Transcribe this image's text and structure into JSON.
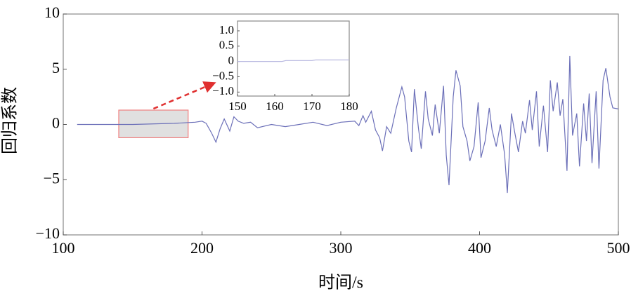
{
  "chart_data": {
    "type": "line",
    "xlabel": "时间/s",
    "ylabel": "回归系数",
    "xlim": [
      100,
      500
    ],
    "ylim": [
      -10,
      10
    ],
    "xticks": [
      100,
      200,
      300,
      400,
      500
    ],
    "yticks": [
      {
        "value": -10,
        "label": "−10"
      },
      {
        "value": -5,
        "label": "−5"
      },
      0,
      5,
      10
    ],
    "series": [
      {
        "color": "#6b6fb8",
        "x": [
          110,
          150,
          180,
          195,
          200,
          203,
          207,
          210,
          213,
          216,
          220,
          223,
          226,
          230,
          235,
          240,
          250,
          260,
          270,
          280,
          290,
          300,
          310,
          313,
          316,
          318,
          322,
          325,
          328,
          330,
          333,
          336,
          340,
          344,
          346,
          349,
          351,
          353,
          356,
          358,
          361,
          363,
          366,
          368,
          371,
          374,
          376,
          378,
          381,
          383,
          386,
          388,
          391,
          393,
          396,
          399,
          401,
          404,
          407,
          409,
          412,
          415,
          418,
          420,
          423,
          425,
          428,
          431,
          433,
          436,
          438,
          441,
          443,
          446,
          449,
          451,
          453,
          456,
          458,
          460,
          463,
          465,
          467,
          470,
          472,
          475,
          477,
          479,
          481,
          484,
          486,
          489,
          491,
          494,
          496,
          500
        ],
        "values": [
          0,
          0,
          0.1,
          0.2,
          0.3,
          0.1,
          -0.8,
          -1.6,
          -0.4,
          0.5,
          -0.6,
          0.7,
          0.3,
          0.1,
          0.2,
          -0.3,
          0,
          -0.2,
          0,
          0.2,
          -0.1,
          0.2,
          0.3,
          -0.1,
          0.8,
          0.2,
          1.2,
          -0.5,
          -1.2,
          -2.4,
          -0.2,
          -0.8,
          1.5,
          3.4,
          2.5,
          -1.5,
          -2.5,
          3.2,
          -0.4,
          -2.2,
          3.0,
          0.5,
          -1.0,
          1.8,
          -0.8,
          3.5,
          -2.8,
          -5.5,
          2.5,
          4.9,
          3.5,
          -0.2,
          -1.5,
          -3.3,
          -2.0,
          2.0,
          -3.0,
          -1.5,
          1.5,
          -0.5,
          -2.0,
          0,
          -2.7,
          -6.2,
          1.0,
          -0.5,
          -2.5,
          0.3,
          -0.8,
          2.2,
          -0.5,
          3.0,
          -2.0,
          1.7,
          -2.5,
          4.0,
          1.2,
          3.8,
          0.8,
          2.3,
          -4.2,
          6.2,
          -1.0,
          1.0,
          -3.8,
          1.9,
          -1.5,
          2.8,
          -3.5,
          3.0,
          -4.0,
          4.0,
          5.1,
          2.5,
          1.5,
          1.4
        ]
      }
    ],
    "zoom_box": {
      "xlim": [
        140,
        190
      ],
      "ylim": [
        -1.2,
        1.3
      ]
    },
    "inset": {
      "xlim": [
        150,
        180
      ],
      "ylim": [
        -1.13,
        1.32
      ],
      "xticks": [
        150,
        160,
        170,
        180
      ],
      "yticks": [
        {
          "value": -1.0,
          "label": "−1.0"
        },
        {
          "value": -0.5,
          "label": "−0.5"
        },
        0,
        0.5,
        {
          "value": 1.0,
          "label": "1.0"
        }
      ],
      "series": [
        {
          "color": "#b8b8e0",
          "x": [
            150,
            162,
            163,
            170,
            171,
            180
          ],
          "values": [
            0,
            0,
            0.03,
            0.03,
            0.05,
            0.05
          ]
        }
      ]
    }
  }
}
